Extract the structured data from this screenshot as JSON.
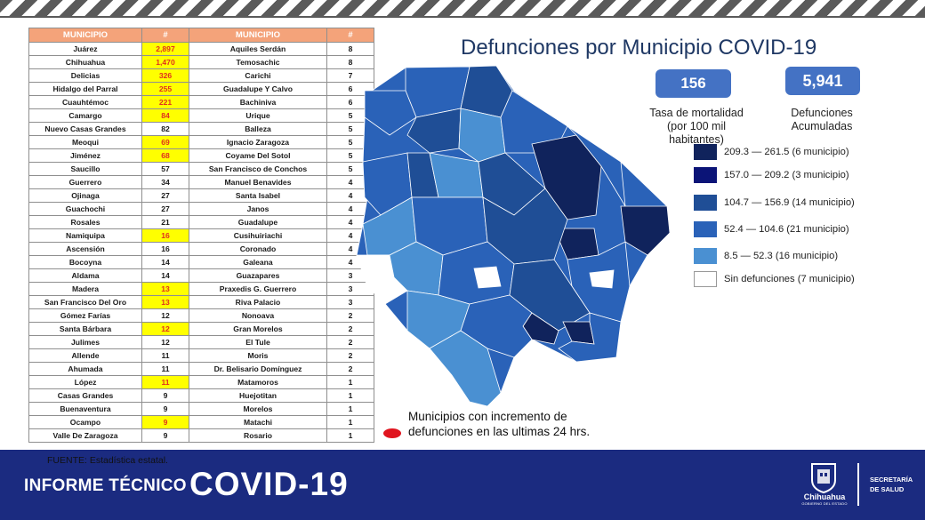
{
  "header": {
    "stripe": "warning-stripes"
  },
  "table": {
    "headers": [
      "MUNICIPIO",
      "#",
      "MUNICIPIO",
      "#"
    ],
    "rows": [
      {
        "m1": "Juárez",
        "n1": "2,897",
        "h1": true,
        "m2": "Aquiles Serdán",
        "n2": "8"
      },
      {
        "m1": "Chihuahua",
        "n1": "1,470",
        "h1": true,
        "m2": "Temosachic",
        "n2": "8"
      },
      {
        "m1": "Delicias",
        "n1": "326",
        "h1": true,
        "m2": "Carichi",
        "n2": "7"
      },
      {
        "m1": "Hidalgo del Parral",
        "n1": "255",
        "h1": true,
        "m2": "Guadalupe Y Calvo",
        "n2": "6"
      },
      {
        "m1": "Cuauhtémoc",
        "n1": "221",
        "h1": true,
        "m2": "Bachiniva",
        "n2": "6"
      },
      {
        "m1": "Camargo",
        "n1": "84",
        "h1": true,
        "m2": "Urique",
        "n2": "5"
      },
      {
        "m1": "Nuevo Casas Grandes",
        "n1": "82",
        "h1": false,
        "m2": "Balleza",
        "n2": "5"
      },
      {
        "m1": "Meoqui",
        "n1": "69",
        "h1": true,
        "m2": "Ignacio Zaragoza",
        "n2": "5"
      },
      {
        "m1": "Jiménez",
        "n1": "68",
        "h1": true,
        "m2": "Coyame Del Sotol",
        "n2": "5"
      },
      {
        "m1": "Saucillo",
        "n1": "57",
        "h1": false,
        "m2": "San Francisco de Conchos",
        "n2": "5"
      },
      {
        "m1": "Guerrero",
        "n1": "34",
        "h1": false,
        "m2": "Manuel Benavides",
        "n2": "4"
      },
      {
        "m1": "Ojinaga",
        "n1": "27",
        "h1": false,
        "m2": "Santa Isabel",
        "n2": "4"
      },
      {
        "m1": "Guachochi",
        "n1": "27",
        "h1": false,
        "m2": "Janos",
        "n2": "4"
      },
      {
        "m1": "Rosales",
        "n1": "21",
        "h1": false,
        "m2": "Guadalupe",
        "n2": "4"
      },
      {
        "m1": "Namiquipa",
        "n1": "16",
        "h1": true,
        "m2": "Cusihuiriachi",
        "n2": "4"
      },
      {
        "m1": "Ascensión",
        "n1": "16",
        "h1": false,
        "m2": "Coronado",
        "n2": "4"
      },
      {
        "m1": "Bocoyna",
        "n1": "14",
        "h1": false,
        "m2": "Galeana",
        "n2": "4"
      },
      {
        "m1": "Aldama",
        "n1": "14",
        "h1": false,
        "m2": "Guazapares",
        "n2": "3"
      },
      {
        "m1": "Madera",
        "n1": "13",
        "h1": true,
        "m2": "Praxedis G. Guerrero",
        "n2": "3"
      },
      {
        "m1": "San Francisco Del Oro",
        "n1": "13",
        "h1": true,
        "m2": "Riva Palacio",
        "n2": "3"
      },
      {
        "m1": "Gómez Farías",
        "n1": "12",
        "h1": false,
        "m2": "Nonoava",
        "n2": "2"
      },
      {
        "m1": "Santa Bárbara",
        "n1": "12",
        "h1": true,
        "m2": "Gran Morelos",
        "n2": "2"
      },
      {
        "m1": "Julimes",
        "n1": "12",
        "h1": false,
        "m2": "El Tule",
        "n2": "2"
      },
      {
        "m1": "Allende",
        "n1": "11",
        "h1": false,
        "m2": "Moris",
        "n2": "2"
      },
      {
        "m1": "Ahumada",
        "n1": "11",
        "h1": false,
        "m2": "Dr. Belisario Domínguez",
        "n2": "2"
      },
      {
        "m1": "López",
        "n1": "11",
        "h1": true,
        "m2": "Matamoros",
        "n2": "1"
      },
      {
        "m1": "Casas Grandes",
        "n1": "9",
        "h1": false,
        "m2": "Huejotitan",
        "n2": "1"
      },
      {
        "m1": "Buenaventura",
        "n1": "9",
        "h1": false,
        "m2": "Morelos",
        "n2": "1"
      },
      {
        "m1": "Ocampo",
        "n1": "9",
        "h1": true,
        "m2": "Matachi",
        "n2": "1"
      },
      {
        "m1": "Valle De Zaragoza",
        "n1": "9",
        "h1": false,
        "m2": "Rosario",
        "n2": "1"
      }
    ]
  },
  "map": {
    "title": "Defunciones por Municipio COVID-19",
    "rate_value": "156",
    "rate_label_1": "Tasa de mortalidad",
    "rate_label_2": "(por 100 mil habitantes)",
    "total_value": "5,941",
    "total_label_1": "Defunciones",
    "total_label_2": "Acumuladas",
    "legend": [
      {
        "label": "209.3 — 261.5 (6 municipio)",
        "color": "#10235c"
      },
      {
        "label": "157.0 — 209.2 (3 municipio)",
        "color": "#0b1477"
      },
      {
        "label": "104.7 — 156.9 (14 municipio)",
        "color": "#1f4e96"
      },
      {
        "label": "52.4 — 104.6 (21 municipio)",
        "color": "#2a62b8"
      },
      {
        "label": "8.5 — 52.3 (16 municipio)",
        "color": "#4a90d2"
      },
      {
        "label": "Sin defunciones (7 municipio)",
        "color": "#ffffff"
      }
    ],
    "increment_note_1": "Municipios con incremento de",
    "increment_note_2": "defunciones en las ultimas 24 hrs.",
    "increment_color": "#e0141e"
  },
  "footer": {
    "source": "FUENTE:  Estadística estatal.",
    "report_label": "INFORME TÉCNICO",
    "covid_label": "COVID-19",
    "logo_text": "Chihuahua",
    "logo_subtext": "GOBIERNO DEL ESTADO",
    "secretaria_1": "SECRETARÍA",
    "secretaria_2": "DE SALUD"
  }
}
